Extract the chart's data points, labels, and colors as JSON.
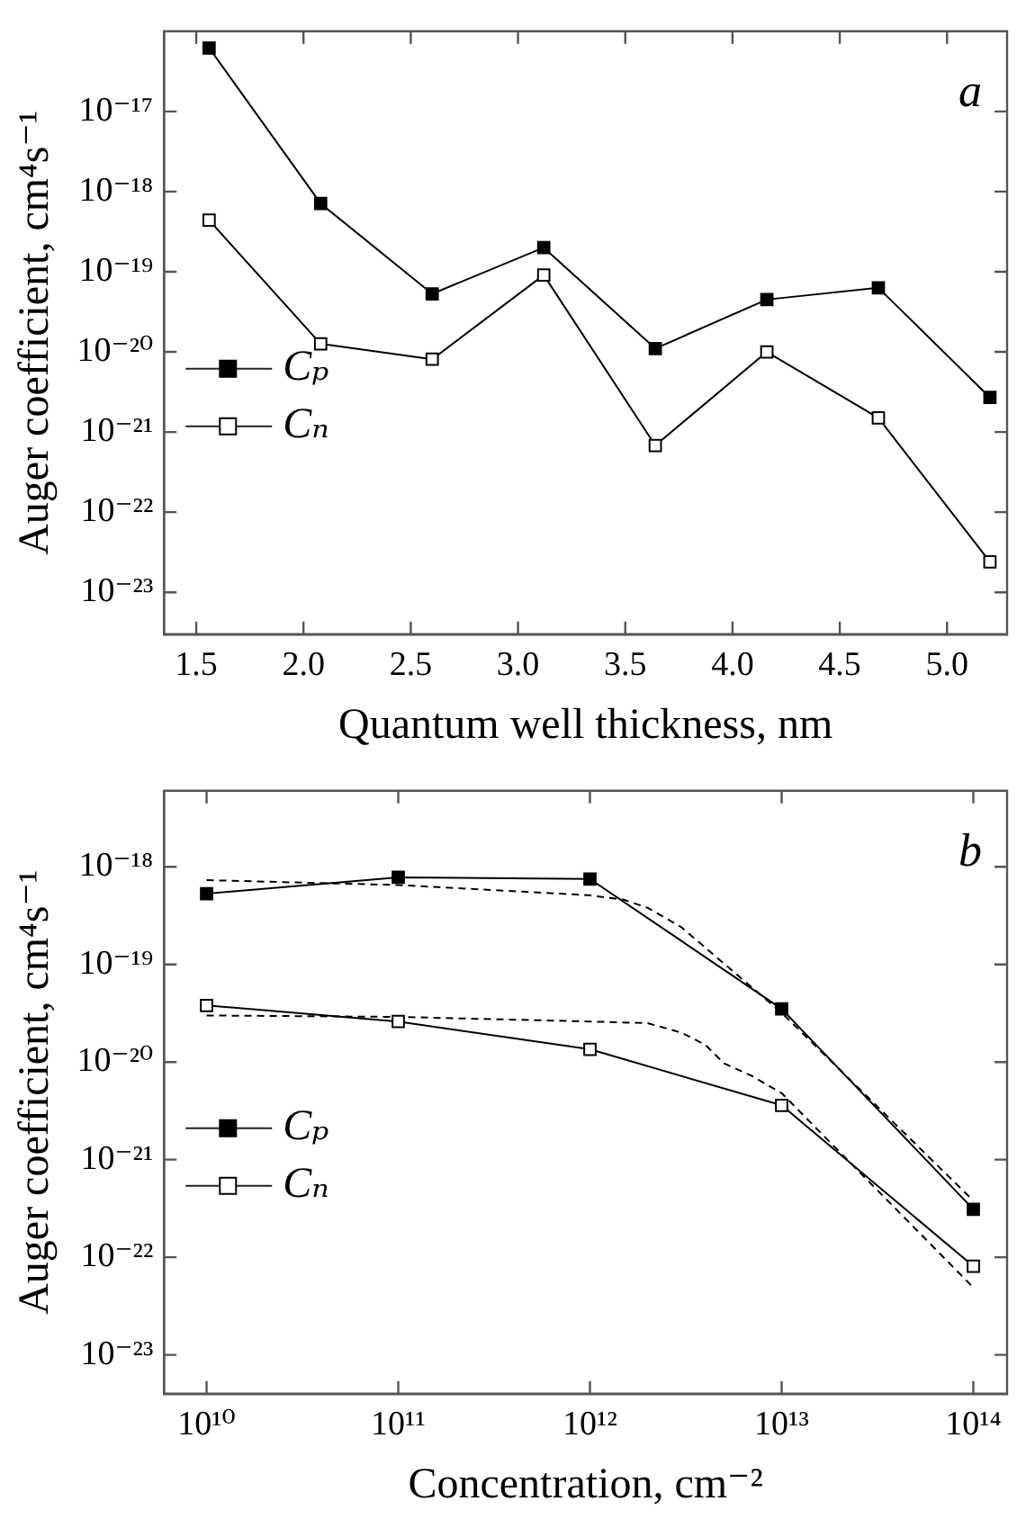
{
  "chart_data": [
    {
      "type": "line",
      "annotations": [
        "a"
      ],
      "xlabel": "Quantum well thickness, nm",
      "ylabel": "Auger coefficient, cm⁴s⁻¹",
      "log": "y",
      "grid": false,
      "legend": "left",
      "marker": "square",
      "line_style": "solid",
      "x": [
        1.56,
        2.08,
        2.6,
        3.12,
        3.64,
        4.16,
        4.68,
        5.2
      ],
      "xlim": [
        1.35,
        5.28
      ],
      "xticks": [
        {
          "value": 1.5,
          "label": "1.5"
        },
        {
          "value": 2,
          "label": "2.0"
        },
        {
          "value": 2.5,
          "label": "2.5"
        },
        {
          "value": 3,
          "label": "3.0"
        },
        {
          "value": 3.5,
          "label": "3.5"
        },
        {
          "value": 4,
          "label": "4.0"
        },
        {
          "value": 4.5,
          "label": "4.5"
        },
        {
          "value": 5,
          "label": "5.0"
        }
      ],
      "ylim": [
        3e-24,
        1e-16
      ],
      "yticks": [
        {
          "value": 1e-23,
          "label": "10⁻²³"
        },
        {
          "value": 1e-22,
          "label": "10⁻²²"
        },
        {
          "value": 1e-21,
          "label": "10⁻²¹"
        },
        {
          "value": 1e-20,
          "label": "10⁻²⁰"
        },
        {
          "value": 1e-19,
          "label": "10⁻¹⁹"
        },
        {
          "value": 1e-18,
          "label": "10⁻¹⁸"
        },
        {
          "value": 1e-17,
          "label": "10⁻¹⁷"
        }
      ],
      "series": [
        {
          "name": "Cₚ",
          "color": "#000000",
          "values": [
            6.2e-17,
            7.1e-19,
            5.3e-20,
            2e-19,
            1.1e-20,
            4.5e-20,
            6.3e-20,
            2.7e-21
          ]
        },
        {
          "name": "Cₙ",
          "color": "#ffffff",
          "values": [
            4.4e-19,
            1.26e-20,
            8.1e-21,
            9.1e-20,
            6.8e-22,
            1e-20,
            1.5e-21,
            2.4e-23
          ]
        }
      ]
    },
    {
      "type": "line",
      "annotations": [
        "b"
      ],
      "xlabel": "Concentration, cm⁻²",
      "ylabel": "Auger coefficient, cm⁴s⁻¹",
      "log": "xy",
      "grid": false,
      "legend": "left",
      "marker": "square",
      "line_style": "solid",
      "x": [
        10000000000.0,
        100000000000.0,
        1000000000000.0,
        10000000000000.0,
        100000000000000.0
      ],
      "xlim": [
        6000000000.0,
        150000000000000.0
      ],
      "xticks": [
        {
          "value": 10000000000.0,
          "label": "10¹⁰"
        },
        {
          "value": 100000000000.0,
          "label": "10¹¹"
        },
        {
          "value": 1000000000000.0,
          "label": "10¹²"
        },
        {
          "value": 10000000000000.0,
          "label": "10¹³"
        },
        {
          "value": 100000000000000.0,
          "label": "10¹⁴"
        }
      ],
      "ylim": [
        4e-24,
        6e-18
      ],
      "yticks": [
        {
          "value": 1e-23,
          "label": "10⁻²³"
        },
        {
          "value": 1e-22,
          "label": "10⁻²²"
        },
        {
          "value": 1e-21,
          "label": "10⁻²¹"
        },
        {
          "value": 1e-20,
          "label": "10⁻²⁰"
        },
        {
          "value": 1e-19,
          "label": "10⁻¹⁹"
        },
        {
          "value": 1e-18,
          "label": "10⁻¹⁸"
        }
      ],
      "series": [
        {
          "name": "Cₚ",
          "color": "#000000",
          "values": [
            5.3e-19,
            7.8e-19,
            7.5e-19,
            3.5e-20,
            3.1e-22
          ]
        },
        {
          "name": "Cₙ",
          "color": "#ffffff",
          "values": [
            3.8e-20,
            2.6e-20,
            1.35e-20,
            3.6e-21,
            8.1e-23
          ]
        },
        {
          "color": "#000000",
          "marker": "none",
          "line_style": "dashed",
          "x": [
            10000000000.0,
            100000000000.0,
            1000000000000.0,
            1500000000000.0,
            2000000000000.0,
            3000000000000.0,
            10000000000000.0,
            100000000000000.0
          ],
          "values": [
            7.3e-19,
            6.5e-19,
            5.1e-19,
            4.6e-19,
            3.8e-19,
            2.4e-19,
            3.2e-20,
            3.8e-22
          ]
        },
        {
          "color": "#000000",
          "marker": "none",
          "line_style": "dashed",
          "x": [
            10000000000.0,
            100000000000.0,
            1000000000000.0,
            2000000000000.0,
            3000000000000.0,
            4000000000000.0,
            5000000000000.0,
            7000000000000.0,
            10000000000000.0,
            100000000000000.0
          ],
          "values": [
            3e-20,
            2.9e-20,
            2.6e-20,
            2.5e-20,
            2e-20,
            1.5e-20,
            9.7e-21,
            7.2e-21,
            4.8e-21,
            4.9e-23
          ]
        }
      ]
    }
  ]
}
